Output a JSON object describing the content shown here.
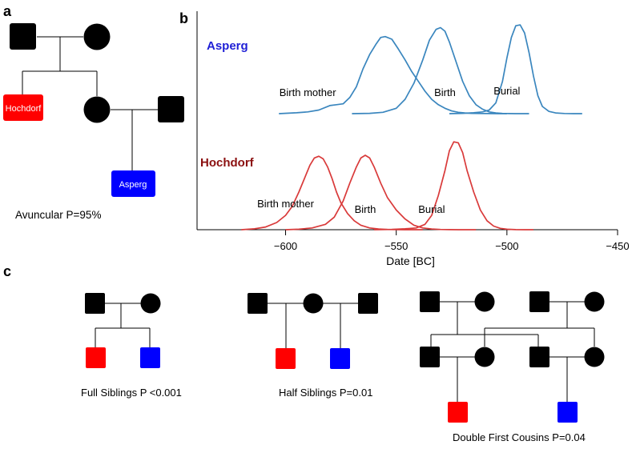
{
  "panels": {
    "a": {
      "letter": "a",
      "hochdorf_label": "Hochdorf",
      "asperg_label": "Asperg",
      "caption": "Avuncular P=95%"
    },
    "b": {
      "letter": "b"
    },
    "c": {
      "letter": "c",
      "full_siblings_caption": "Full Siblings P <0.001",
      "half_siblings_caption": "Half Siblings P=0.01",
      "double_cousins_caption": "Double First Cousins P=0.04"
    }
  },
  "colors": {
    "red": "#ff0000",
    "blue": "#0000ff",
    "black": "#000000",
    "asperg_curve": "#3a86be",
    "hochdorf_curve": "#d93a3a",
    "asperg_title": "#1f1fd6",
    "hochdorf_title": "#8b1010"
  },
  "chart_data": {
    "type": "area",
    "xlabel": "Date [BC]",
    "xlim": [
      -640,
      -450
    ],
    "xticks": [
      -600,
      -550,
      -500,
      -450
    ],
    "xtick_labels": [
      "−600",
      "−550",
      "−500",
      "−450"
    ],
    "groups": [
      {
        "name": "Asperg",
        "series": [
          {
            "name": "Birth mother",
            "label_x": -590,
            "x": [
              -603,
              -595,
              -590,
              -585,
              -580,
              -577,
              -574,
              -571,
              -568,
              -565,
              -562,
              -559,
              -557,
              -555,
              -552,
              -549,
              -546,
              -543,
              -540,
              -537,
              -534,
              -531,
              -528,
              -525,
              -522,
              -519,
              -516,
              -512,
              -508,
              -504,
              -500
            ],
            "y": [
              0.0,
              0.01,
              0.02,
              0.04,
              0.09,
              0.1,
              0.11,
              0.18,
              0.3,
              0.5,
              0.66,
              0.78,
              0.85,
              0.86,
              0.83,
              0.72,
              0.6,
              0.47,
              0.36,
              0.25,
              0.16,
              0.1,
              0.06,
              0.03,
              0.015,
              0.008,
              0.004,
              0.002,
              0.001,
              0.0,
              0.0
            ]
          },
          {
            "name": "Birth",
            "label_x": -528,
            "x": [
              -570,
              -562,
              -556,
              -550,
              -546,
              -542,
              -538,
              -535,
              -532,
              -530,
              -528,
              -526,
              -523,
              -520,
              -517,
              -514,
              -511,
              -508,
              -505,
              -502,
              -499,
              -496,
              -493,
              -490
            ],
            "y": [
              0.0,
              0.004,
              0.015,
              0.06,
              0.16,
              0.34,
              0.6,
              0.82,
              0.94,
              0.96,
              0.92,
              0.8,
              0.58,
              0.36,
              0.2,
              0.1,
              0.05,
              0.02,
              0.008,
              0.003,
              0.001,
              0.0,
              0.0,
              0.0
            ]
          },
          {
            "name": "Burial",
            "label_x": -500,
            "x": [
              -526,
              -520,
              -515,
              -511,
              -508,
              -505,
              -502,
              -500,
              -498,
              -496,
              -494,
              -492,
              -490,
              -488,
              -486,
              -484,
              -481,
              -478,
              -474,
              -470,
              -466
            ],
            "y": [
              0.0,
              0.004,
              0.01,
              0.02,
              0.04,
              0.12,
              0.36,
              0.62,
              0.85,
              0.98,
              0.99,
              0.9,
              0.68,
              0.42,
              0.2,
              0.08,
              0.025,
              0.008,
              0.002,
              0.0,
              0.0
            ]
          }
        ]
      },
      {
        "name": "Hochdorf",
        "series": [
          {
            "name": "Birth mother",
            "label_x": -600,
            "x": [
              -620,
              -614,
              -609,
              -604,
              -600,
              -597,
              -594,
              -591,
              -589,
              -587,
              -585,
              -583,
              -581,
              -579,
              -577,
              -575,
              -572,
              -569,
              -566,
              -562,
              -558,
              -554,
              -550,
              -546,
              -542,
              -538
            ],
            "y": [
              0.0,
              0.01,
              0.03,
              0.08,
              0.16,
              0.26,
              0.42,
              0.6,
              0.72,
              0.8,
              0.82,
              0.79,
              0.7,
              0.57,
              0.42,
              0.3,
              0.18,
              0.1,
              0.05,
              0.02,
              0.008,
              0.003,
              0.001,
              0.0,
              0.0,
              0.0
            ]
          },
          {
            "name": "Birth",
            "label_x": -564,
            "x": [
              -600,
              -594,
              -588,
              -582,
              -578,
              -574,
              -571,
              -568,
              -566,
              -564,
              -562,
              -560,
              -557,
              -554,
              -550,
              -546,
              -542,
              -538,
              -534,
              -530,
              -526,
              -522,
              -518,
              -514
            ],
            "y": [
              0.0,
              0.005,
              0.02,
              0.06,
              0.14,
              0.32,
              0.52,
              0.7,
              0.8,
              0.83,
              0.8,
              0.7,
              0.52,
              0.36,
              0.22,
              0.12,
              0.05,
              0.02,
              0.008,
              0.003,
              0.001,
              0.0,
              0.0,
              0.0
            ]
          },
          {
            "name": "Burial",
            "label_x": -534,
            "x": [
              -560,
              -552,
              -546,
              -541,
              -537,
              -534,
              -531,
              -528,
              -526,
              -524,
              -522,
              -520,
              -518,
              -515,
              -512,
              -509,
              -506,
              -503,
              -500,
              -496,
              -492,
              -488
            ],
            "y": [
              0.0,
              0.004,
              0.01,
              0.02,
              0.06,
              0.16,
              0.38,
              0.66,
              0.88,
              0.98,
              0.97,
              0.86,
              0.66,
              0.42,
              0.22,
              0.1,
              0.04,
              0.015,
              0.005,
              0.001,
              0.0,
              0.0
            ]
          }
        ]
      }
    ]
  }
}
